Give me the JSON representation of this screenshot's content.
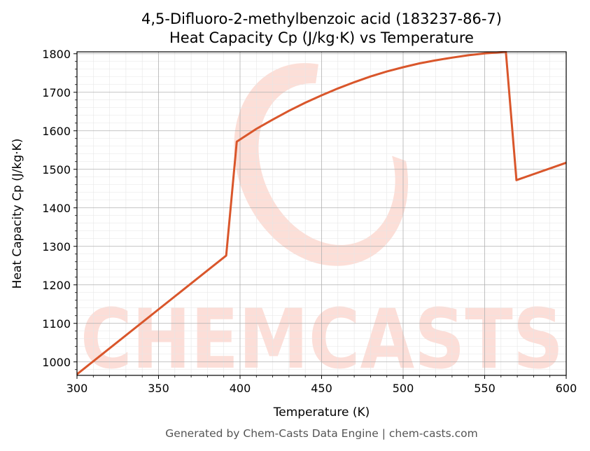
{
  "title_line1": "4,5-Difluoro-2-methylbenzoic acid (183237-86-7)",
  "title_line2": "Heat Capacity Cp (J/kg·K) vs Temperature",
  "footer": "Generated by Chem-Casts Data Engine | chem-casts.com",
  "watermark": "CHEMCASTS",
  "colors": {
    "line": "#d9562b",
    "grid_major": "#b0b0b0",
    "grid_minor": "#e6e6e6",
    "watermark": "#fbd4cb"
  },
  "chart_data": {
    "type": "line",
    "title": "4,5-Difluoro-2-methylbenzoic acid (183237-86-7)\nHeat Capacity Cp (J/kg·K) vs Temperature",
    "xlabel": "Temperature (K)",
    "ylabel": "Heat Capacity Cp (J/kg·K)",
    "xlim": [
      300,
      600
    ],
    "ylim": [
      965,
      1805
    ],
    "xticks": [
      300,
      350,
      400,
      450,
      500,
      550,
      600
    ],
    "yticks": [
      1000,
      1100,
      1200,
      1300,
      1400,
      1500,
      1600,
      1700,
      1800
    ],
    "grid": true,
    "minor_grid": true,
    "series": [
      {
        "color": "#d9562b",
        "x": [
          300,
          391.5,
          398,
          410,
          420,
          430,
          440,
          450,
          460,
          470,
          480,
          490,
          500,
          510,
          520,
          530,
          540,
          550,
          563,
          569.5,
          600
        ],
        "y": [
          968,
          1276,
          1572,
          1605,
          1629,
          1652,
          1673,
          1692,
          1710,
          1726,
          1741,
          1754,
          1765,
          1775,
          1783,
          1790,
          1796,
          1801,
          1805,
          1472,
          1517
        ]
      }
    ]
  }
}
